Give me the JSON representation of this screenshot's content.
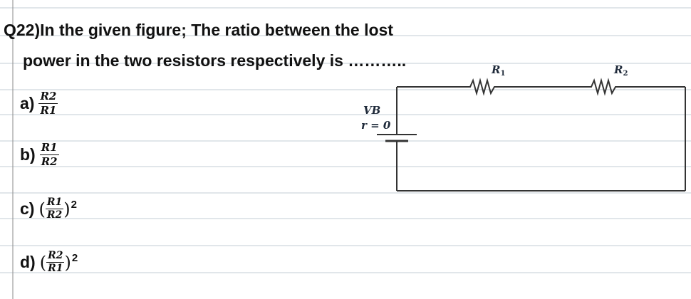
{
  "question": {
    "number": "Q22)",
    "text_line1": "In the given figure; The ratio between the lost",
    "text_line2": "power in the two resistors respectively is ……….."
  },
  "options": [
    {
      "letter": "a)",
      "numerator": "R2",
      "denominator": "R1",
      "power": ""
    },
    {
      "letter": "b)",
      "numerator": "R1",
      "denominator": "R2",
      "power": ""
    },
    {
      "letter": "c)",
      "numerator": "R1",
      "denominator": "R2",
      "power": "2"
    },
    {
      "letter": "d)",
      "numerator": "R2",
      "denominator": "R1",
      "power": "2"
    }
  ],
  "circuit": {
    "battery_label": "VB",
    "internal_resistance": "r = 0",
    "resistor1_symbol": "R",
    "resistor1_sub": "1",
    "resistor2_symbol": "R",
    "resistor2_sub": "2"
  },
  "colors": {
    "ruled_line": "#b9c6d3",
    "margin_line": "#8a8a8a",
    "wire": "#333333",
    "ink": "#111111"
  }
}
